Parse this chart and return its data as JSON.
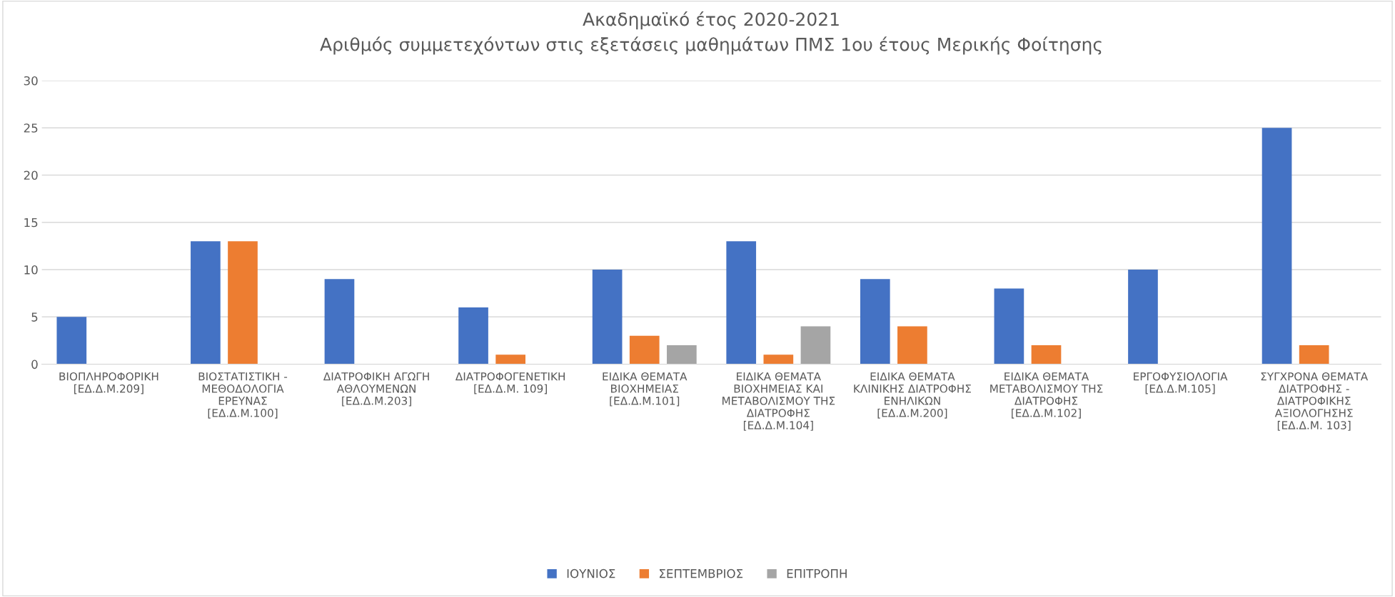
{
  "chart_data": {
    "type": "bar",
    "title": "Ακαδημαϊκό έτος 2020-2021\nΑριθμός συμμετεχόντων στις εξετάσεις μαθημάτων ΠΜΣ 1ου έτους Μερικής Φοίτησης",
    "categories": [
      "ΒΙΟΠΛΗΡΟΦΟΡΙΚΗ\n[ΕΔ.Δ.Μ.209]",
      "ΒΙΟΣΤΑΤΙΣΤΙΚΗ -\nΜΕΘΟΔΟΛΟΓΙΑ\nΕΡΕΥΝΑΣ\n[ΕΔ.Δ.Μ.100]",
      "ΔΙΑΤΡΟΦΙΚΗ ΑΓΩΓΗ\nΑΘΛΟΥΜΕΝΩΝ\n[ΕΔ.Δ.Μ.203]",
      "ΔΙΑΤΡΟΦΟΓΕΝΕΤΙΚΗ\n[ΕΔ.Δ.Μ. 109]",
      "ΕΙΔΙΚΑ ΘΕΜΑΤΑ\nΒΙΟΧΗΜΕΙΑΣ\n[ΕΔ.Δ.Μ.101]",
      "ΕΙΔΙΚΑ ΘΕΜΑΤΑ\nΒΙΟΧΗΜΕΙΑΣ ΚΑΙ\nΜΕΤΑΒΟΛΙΣΜΟΥ ΤΗΣ\nΔΙΑΤΡΟΦΗΣ\n[ΕΔ.Δ.Μ.104]",
      "ΕΙΔΙΚΑ ΘΕΜΑΤΑ\nΚΛΙΝΙΚΗΣ ΔΙΑΤΡΟΦΗΣ\nΕΝΗΛΙΚΩΝ\n[ΕΔ.Δ.Μ.200]",
      "ΕΙΔΙΚΑ ΘΕΜΑΤΑ\nΜΕΤΑΒΟΛΙΣΜΟΥ ΤΗΣ\nΔΙΑΤΡΟΦΗΣ\n[ΕΔ.Δ.Μ.102]",
      "ΕΡΓΟΦΥΣΙΟΛΟΓΙΑ\n[ΕΔ.Δ.Μ.105]",
      "ΣΥΓΧΡΟΝΑ ΘΕΜΑΤΑ\nΔΙΑΤΡΟΦΗΣ -\nΔΙΑΤΡΟΦΙΚΗΣ\nΑΞΙΟΛΟΓΗΣΗΣ\n[ΕΔ.Δ.Μ. 103]"
    ],
    "series": [
      {
        "name": "ΙΟΥΝΙΟΣ",
        "color": "#4472c4",
        "values": [
          5,
          13,
          9,
          6,
          10,
          13,
          9,
          8,
          10,
          25
        ]
      },
      {
        "name": "ΣΕΠΤΕΜΒΡΙΟΣ",
        "color": "#ed7d31",
        "values": [
          0,
          13,
          0,
          1,
          3,
          1,
          4,
          2,
          0,
          2
        ]
      },
      {
        "name": "ΕΠΙΤΡΟΠΗ",
        "color": "#a5a5a5",
        "values": [
          0,
          0,
          0,
          0,
          2,
          4,
          0,
          0,
          0,
          0
        ]
      }
    ],
    "ylim": [
      0,
      30
    ],
    "yticks": [
      0,
      5,
      10,
      15,
      20,
      25,
      30
    ],
    "grid": "y",
    "legend": "bottom"
  }
}
